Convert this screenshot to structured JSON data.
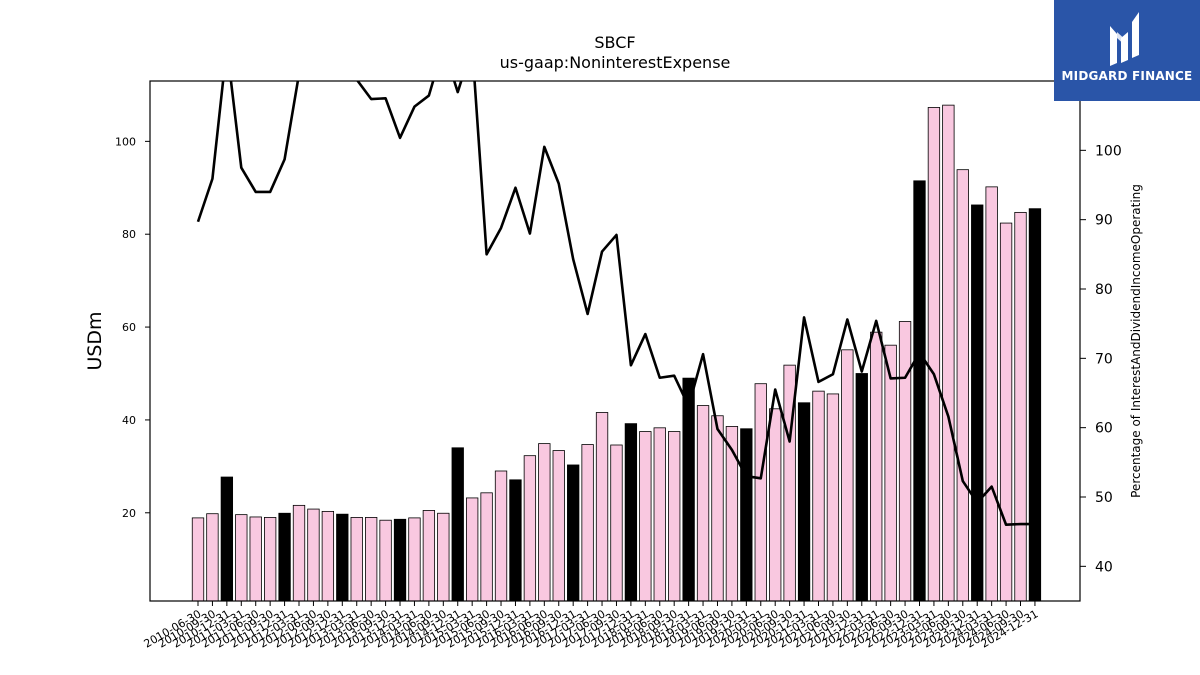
{
  "chart_data": {
    "type": "bar+line",
    "title": "SBCF",
    "subtitle": "us-gaap:NoninterestExpense",
    "ylabel_left": "USDm",
    "ylabel_right": "Percentage of InterestAndDividendIncomeOperating",
    "ylim_left": [
      1,
      113
    ],
    "ylim_right": [
      35,
      110
    ],
    "yticks_left": [
      20,
      40,
      60,
      80,
      100
    ],
    "yticks_right": [
      40,
      50,
      60,
      70,
      80,
      90,
      100
    ],
    "categories": [
      "2010-06-30",
      "2010-09-30",
      "2010-12-31",
      "2011-03-31",
      "2011-06-30",
      "2011-09-30",
      "2011-12-31",
      "2012-03-31",
      "2012-06-30",
      "2012-09-30",
      "2012-12-31",
      "2013-03-31",
      "2013-06-30",
      "2013-09-30",
      "2013-12-31",
      "2014-03-31",
      "2014-06-30",
      "2014-09-30",
      "2014-12-31",
      "2015-03-31",
      "2015-06-30",
      "2015-09-30",
      "2015-12-31",
      "2016-03-31",
      "2016-06-30",
      "2016-09-30",
      "2016-12-31",
      "2017-03-31",
      "2017-06-30",
      "2017-09-30",
      "2017-12-31",
      "2018-03-31",
      "2018-06-30",
      "2018-09-30",
      "2018-12-31",
      "2019-03-31",
      "2019-06-30",
      "2019-09-30",
      "2019-12-31",
      "2020-03-31",
      "2020-06-30",
      "2020-09-30",
      "2020-12-31",
      "2021-03-31",
      "2021-06-30",
      "2021-09-30",
      "2021-12-31",
      "2022-03-31",
      "2022-06-30",
      "2022-09-30",
      "2022-12-31",
      "2023-03-31",
      "2023-06-30",
      "2023-09-30",
      "2023-12-31",
      "2024-03-31",
      "2024-06-30",
      "2024-09-30",
      "2024-12-31"
    ],
    "series": [
      {
        "type": "bar",
        "values": [
          18.9,
          19.8,
          27.7,
          19.6,
          19.1,
          19.0,
          19.9,
          21.6,
          20.8,
          20.3,
          19.7,
          19.0,
          19.0,
          18.4,
          18.6,
          18.9,
          20.5,
          19.9,
          34.0,
          23.2,
          24.3,
          29.0,
          27.1,
          32.3,
          34.9,
          33.4,
          30.3,
          34.7,
          41.6,
          34.6,
          39.2,
          37.5,
          38.3,
          37.5,
          49.0,
          43.1,
          40.9,
          38.6,
          38.1,
          47.8,
          42.4,
          51.8,
          43.7,
          46.2,
          45.6,
          55.1,
          50.0,
          58.9,
          56.1,
          61.2,
          91.5,
          107.3,
          107.8,
          93.9,
          86.3,
          90.2,
          82.4,
          84.7,
          85.5
        ],
        "highlight": [
          false,
          false,
          true,
          false,
          false,
          false,
          true,
          false,
          false,
          false,
          true,
          false,
          false,
          false,
          true,
          false,
          false,
          false,
          true,
          false,
          false,
          false,
          true,
          false,
          false,
          false,
          true,
          false,
          false,
          false,
          true,
          false,
          false,
          false,
          true,
          false,
          false,
          false,
          true,
          false,
          false,
          false,
          true,
          false,
          false,
          false,
          true,
          false,
          false,
          false,
          true,
          false,
          false,
          false,
          true,
          false,
          false,
          false,
          true
        ],
        "color": "#f9c8e0",
        "highlight_color": "#000000"
      },
      {
        "type": "line",
        "axis": "right",
        "color": "#000000",
        "values": [
          89.7,
          95.9,
          115,
          97.5,
          94.0,
          94.0,
          98.7,
          111,
          112,
          112,
          112,
          110.2,
          107.4,
          107.5,
          101.8,
          106.3,
          107.9,
          115,
          108.4,
          115,
          85.0,
          88.8,
          94.6,
          88.0,
          100.5,
          95.2,
          84.3,
          76.4,
          85.4,
          87.8,
          69.0,
          73.5,
          67.2,
          67.5,
          63.1,
          70.6,
          59.8,
          56.8,
          53.0,
          52.7,
          65.5,
          58.0,
          75.9,
          66.6,
          67.7,
          75.6,
          68.1,
          75.4,
          67.1,
          67.2,
          70.8,
          67.7,
          61.6,
          52.3,
          49.2,
          51.5,
          46.0,
          46.1,
          46.1
        ]
      }
    ]
  },
  "logo": {
    "text": "MIDGARD FINANCE"
  }
}
